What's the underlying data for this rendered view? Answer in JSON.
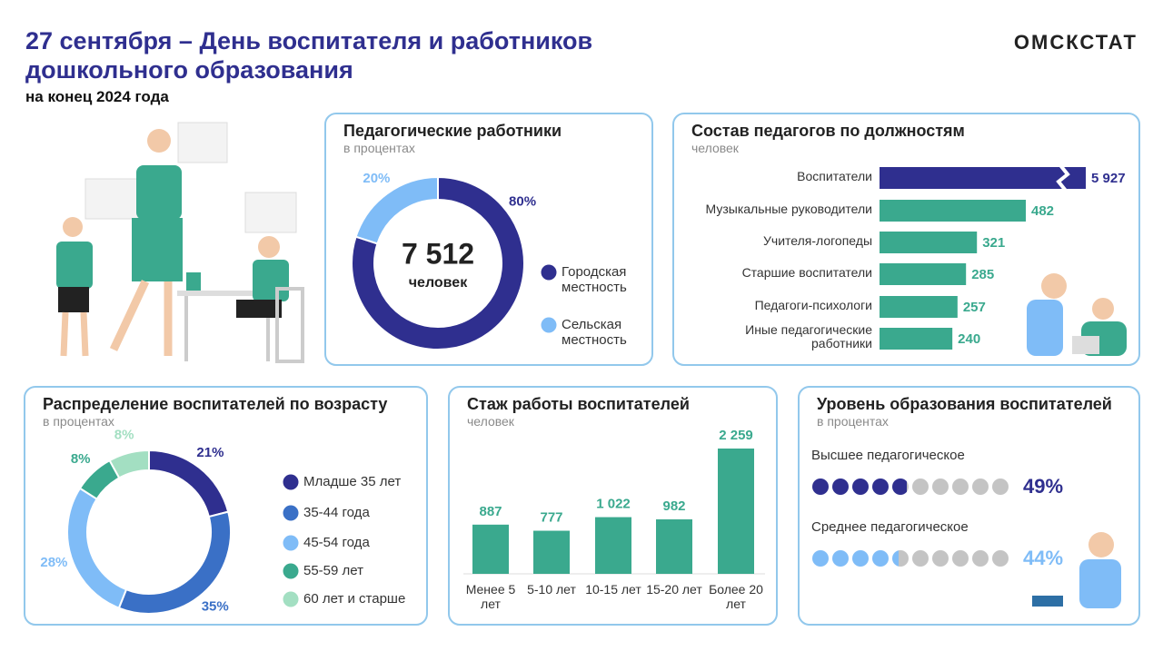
{
  "header": {
    "title": "27 сентября – День воспитателя и работников дошкольного образования",
    "subtitle": "на конец 2024 года",
    "brand": "ОМСКСТАТ"
  },
  "chart_data": [
    {
      "type": "donut",
      "title": "Педагогические работники",
      "subtitle": "в процентах",
      "center_value": "7 512",
      "center_unit": "человек",
      "categories": [
        "Городская местность",
        "Сельская местность"
      ],
      "values": [
        80,
        20
      ],
      "value_labels": [
        "80%",
        "20%"
      ],
      "colors": [
        "#2f2f8f",
        "#7fbcf7"
      ]
    },
    {
      "type": "hbar",
      "title": "Состав педагогов по должностям",
      "subtitle": "человек",
      "categories": [
        "Воспитатели",
        "Музыкальные руководители",
        "Учителя-логопеды",
        "Старшие воспитатели",
        "Педагоги-психологи",
        "Иные педагогические работники"
      ],
      "values": [
        5927,
        482,
        321,
        285,
        257,
        240
      ],
      "value_labels": [
        "5 927",
        "482",
        "321",
        "285",
        "257",
        "240"
      ],
      "colors": [
        "#2f2f8f",
        "#3aa98e",
        "#3aa98e",
        "#3aa98e",
        "#3aa98e",
        "#3aa98e"
      ],
      "axis_break": true
    },
    {
      "type": "donut",
      "title": "Распределение воспитателей по возрасту",
      "subtitle": "в процентах",
      "categories": [
        "Младше 35 лет",
        "35-44 года",
        "45-54 года",
        "55-59 лет",
        "60 лет и старше"
      ],
      "values": [
        21,
        35,
        28,
        8,
        8
      ],
      "value_labels": [
        "21%",
        "35%",
        "28%",
        "8%",
        "8%"
      ],
      "colors": [
        "#2f2f8f",
        "#3a70c6",
        "#7fbcf7",
        "#3aa98e",
        "#a3dfc2"
      ]
    },
    {
      "type": "bar",
      "title": "Стаж работы воспитателей",
      "subtitle": "человек",
      "categories": [
        "Менее 5 лет",
        "5-10 лет",
        "10-15 лет",
        "15-20 лет",
        "Более 20 лет"
      ],
      "values": [
        887,
        777,
        1022,
        982,
        2259
      ],
      "value_labels": [
        "887",
        "777",
        "1 022",
        "982",
        "2 259"
      ],
      "color": "#3aa98e"
    },
    {
      "type": "dots",
      "title": "Уровень образования воспитателей",
      "subtitle": "в процентах",
      "categories": [
        "Высшее педагогическое",
        "Среднее педагогическое"
      ],
      "values": [
        49,
        44
      ],
      "value_labels": [
        "49%",
        "44%"
      ],
      "colors": [
        "#2f2f8f",
        "#7fbcf7"
      ],
      "empty_color": "#c4c4c4"
    }
  ]
}
